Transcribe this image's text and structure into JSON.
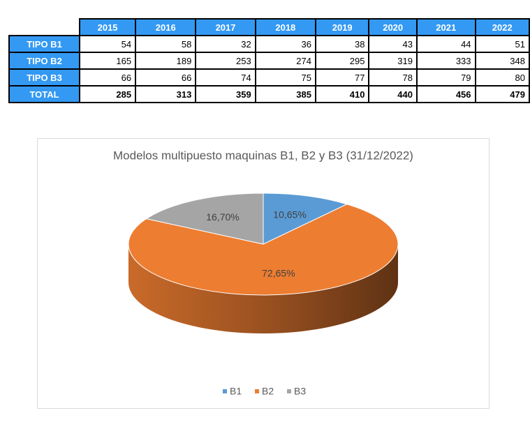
{
  "table": {
    "columns": [
      2015,
      2016,
      2017,
      2018,
      2019,
      2020,
      2021,
      2022
    ],
    "rows": [
      {
        "label": "TIPO B1",
        "values": [
          54,
          58,
          32,
          36,
          38,
          43,
          44,
          51
        ]
      },
      {
        "label": "TIPO B2",
        "values": [
          165,
          189,
          253,
          274,
          295,
          319,
          333,
          348
        ]
      },
      {
        "label": "TIPO B3",
        "values": [
          66,
          66,
          74,
          75,
          77,
          78,
          79,
          80
        ]
      },
      {
        "label": "TOTAL",
        "values": [
          285,
          313,
          359,
          385,
          410,
          440,
          456,
          479
        ]
      }
    ]
  },
  "chart_data": {
    "type": "pie",
    "title": "Modelos multipuesto maquinas B1, B2 y B3 (31/12/2022)",
    "categories": [
      "B1",
      "B2",
      "B3"
    ],
    "values": [
      10.65,
      72.65,
      16.7
    ],
    "value_labels": [
      "10,65%",
      "72,65%",
      "16,70%"
    ],
    "colors": [
      "#5b9bd5",
      "#ed7d31",
      "#a5a5a5"
    ],
    "legend": "bottom"
  }
}
